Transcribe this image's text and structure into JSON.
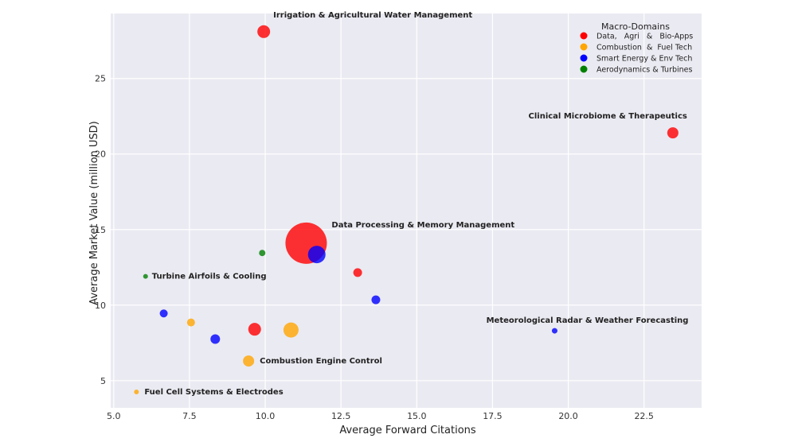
{
  "chart_data": {
    "type": "scatter",
    "title": "",
    "xlabel": "Average Forward Citations",
    "ylabel": "Average Market Value (million USD)",
    "xlim": [
      4.9,
      24.4
    ],
    "ylim": [
      3.2,
      29.3
    ],
    "xticks": [
      5.0,
      7.5,
      10.0,
      12.5,
      15.0,
      17.5,
      20.0,
      22.5
    ],
    "xtick_labels": [
      "5.0",
      "7.5",
      "10.0",
      "12.5",
      "15.0",
      "17.5",
      "20.0",
      "22.5"
    ],
    "yticks": [
      5,
      10,
      15,
      20,
      25
    ],
    "ytick_labels": [
      "5",
      "10",
      "15",
      "20",
      "25"
    ],
    "grid": true,
    "legend": {
      "title": "Macro-Domains",
      "placement": "top-right",
      "entries": [
        {
          "label": "Data,   Agri   &   Bio-Apps",
          "color": "#ff0000"
        },
        {
          "label": "Combustion  &  Fuel Tech",
          "color": "#ffa500"
        },
        {
          "label": "Smart Energy & Env Tech",
          "color": "#0000ff"
        },
        {
          "label": "Aerodynamics & Turbines",
          "color": "#008000"
        }
      ]
    },
    "series": [
      {
        "name": "Data,   Agri   &   Bio-Apps",
        "color": "#ff0000",
        "points": [
          {
            "x": 9.95,
            "y": 28.1,
            "size": 16,
            "label": "Irrigation & Agricultural Water Management"
          },
          {
            "x": 23.45,
            "y": 21.4,
            "size": 14,
            "label": "Clinical Microbiome & Therapeutics"
          },
          {
            "x": 11.35,
            "y": 14.1,
            "size": 52,
            "label": "Data Processing & Memory Management"
          },
          {
            "x": 13.05,
            "y": 12.15,
            "size": 11,
            "label": ""
          },
          {
            "x": 9.65,
            "y": 8.4,
            "size": 16,
            "label": ""
          }
        ]
      },
      {
        "name": "Combustion  &  Fuel Tech",
        "color": "#ffa500",
        "points": [
          {
            "x": 7.55,
            "y": 8.85,
            "size": 10,
            "label": ""
          },
          {
            "x": 10.85,
            "y": 8.35,
            "size": 19,
            "label": ""
          },
          {
            "x": 9.45,
            "y": 6.3,
            "size": 14,
            "label": "Combustion Engine Control"
          },
          {
            "x": 5.75,
            "y": 4.25,
            "size": 6,
            "label": "Fuel Cell Systems & Electrodes"
          }
        ]
      },
      {
        "name": "Smart Energy & Env Tech",
        "color": "#0000ff",
        "points": [
          {
            "x": 11.7,
            "y": 13.35,
            "size": 22,
            "label": ""
          },
          {
            "x": 13.65,
            "y": 10.35,
            "size": 11,
            "label": ""
          },
          {
            "x": 6.65,
            "y": 9.45,
            "size": 10,
            "label": ""
          },
          {
            "x": 8.35,
            "y": 7.75,
            "size": 12,
            "label": ""
          },
          {
            "x": 19.55,
            "y": 8.3,
            "size": 7,
            "label": "Meteorological Radar & Weather Forecasting"
          }
        ]
      },
      {
        "name": "Aerodynamics & Turbines",
        "color": "#008000",
        "points": [
          {
            "x": 9.9,
            "y": 13.45,
            "size": 8,
            "label": ""
          },
          {
            "x": 6.05,
            "y": 11.9,
            "size": 6,
            "label": "Turbine Airfoils & Cooling"
          }
        ]
      }
    ]
  }
}
